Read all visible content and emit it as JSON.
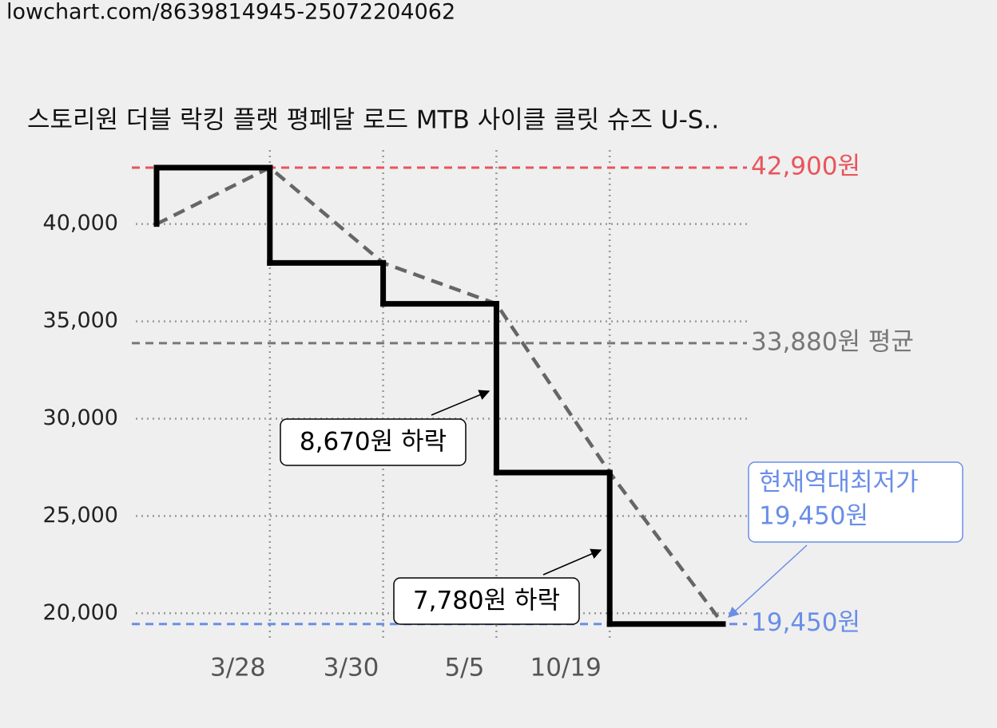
{
  "page_url": "lowchart.com/8639814945-25072204062",
  "chart_data": {
    "type": "step-line",
    "title": "스토리원 더블 락킹 플랫 평페달 로드 MTB 사이클 클릿 슈즈 U-S..",
    "categories": [
      null,
      "3/28",
      "3/30",
      "5/5",
      "10/19",
      null
    ],
    "series": [
      {
        "color": "#000000",
        "trend_color": "#666666",
        "values": [
          40000,
          42900,
          38000,
          35900,
          27230,
          19450
        ]
      }
    ],
    "ylim": [
      18700,
      43800
    ],
    "yticks": [
      {
        "value": 20000,
        "label": "20,000"
      },
      {
        "value": 25000,
        "label": "25,000"
      },
      {
        "value": 30000,
        "label": "30,000"
      },
      {
        "value": 35000,
        "label": "35,000"
      },
      {
        "value": 40000,
        "label": "40,000"
      }
    ],
    "grid": true,
    "reference_lines": [
      {
        "value": 42900,
        "label": "42,900원",
        "color": "#e8555c"
      },
      {
        "value": 33880,
        "label": "33,880원 평균",
        "color": "#777777"
      },
      {
        "value": 19450,
        "label": "19,450원",
        "color": "#6a8ee8"
      }
    ],
    "annotations": [
      {
        "text": "8,670원 하락",
        "value": 8670
      },
      {
        "text": "7,780원 하락",
        "value": 7780
      }
    ],
    "callout": {
      "lines": [
        "현재역대최저가",
        "19,450원"
      ],
      "color": "#6a8ee8"
    }
  }
}
